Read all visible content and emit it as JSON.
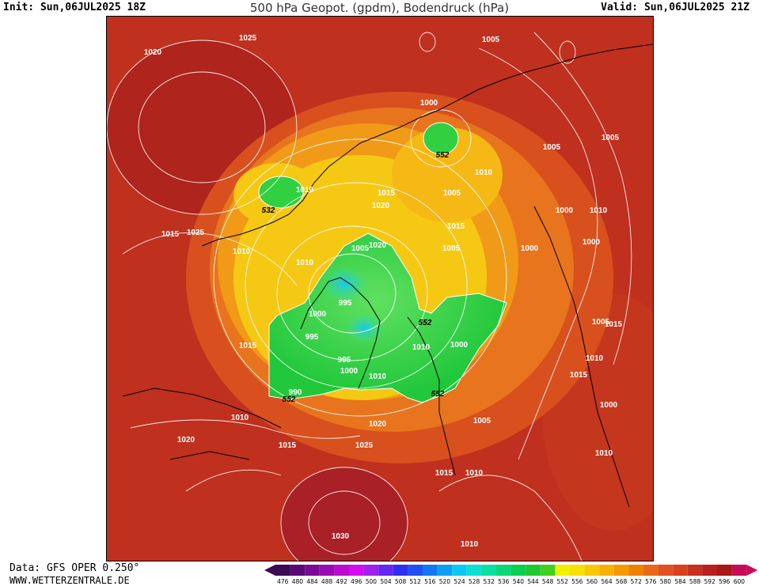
{
  "header": {
    "init": "Init: Sun,06JUL2025 18Z",
    "title": "500 hPa Geopot. (gpdm), Bodendruck (hPa)",
    "valid": "Valid: Sun,06JUL2025 21Z"
  },
  "footer": {
    "data_source": "Data: GFS OPER 0.250°",
    "website": "WWW.WETTERZENTRALE.DE"
  },
  "colors": {
    "background_high": "#b8281e",
    "ring_orange": "#ec7a1e",
    "ring_yellow": "#f5cc10",
    "low_green": "#22c83c",
    "low_cyan": "#18d8e8",
    "contour": "#ffffff",
    "coast": "#000000"
  },
  "scale": {
    "labels": [
      "476",
      "480",
      "484",
      "488",
      "492",
      "496",
      "500",
      "504",
      "508",
      "512",
      "516",
      "520",
      "524",
      "528",
      "532",
      "536",
      "540",
      "544",
      "548",
      "552",
      "556",
      "560",
      "564",
      "568",
      "572",
      "576",
      "580",
      "584",
      "588",
      "592",
      "596",
      "600"
    ],
    "colors": [
      "#3c0a50",
      "#5a0a78",
      "#7a0a96",
      "#9a0ab4",
      "#bc0ad2",
      "#d40af0",
      "#a020f0",
      "#6428f0",
      "#3030f0",
      "#2050f0",
      "#1478f0",
      "#0aa0f0",
      "#0ac8f0",
      "#0ae0d0",
      "#0ae0a0",
      "#0ad878",
      "#0ad050",
      "#20c830",
      "#40d020",
      "#f0f000",
      "#f8e000",
      "#f8c800",
      "#f8b000",
      "#f89800",
      "#f08000",
      "#e86818",
      "#e05020",
      "#d84020",
      "#c83020",
      "#b82020",
      "#a81818",
      "#c80a5a"
    ]
  },
  "isobar_labels": [
    "1025",
    "1005",
    "1020",
    "1000",
    "552",
    "1005",
    "1005",
    "1010",
    "1010",
    "1005",
    "532",
    "1015",
    "1010",
    "1020",
    "1000",
    "1010",
    "1025",
    "1015",
    "1005",
    "1020",
    "1015",
    "1005",
    "1000",
    "1010",
    "995",
    "552",
    "1000",
    "995",
    "1010",
    "1000",
    "1015",
    "1000",
    "995",
    "1000",
    "1010",
    "552",
    "1015",
    "552",
    "990",
    "1010",
    "1005",
    "1000",
    "1015",
    "1010",
    "1005",
    "1020",
    "1020",
    "1015",
    "1025",
    "1010",
    "1015",
    "1010",
    "1030",
    "1010"
  ]
}
